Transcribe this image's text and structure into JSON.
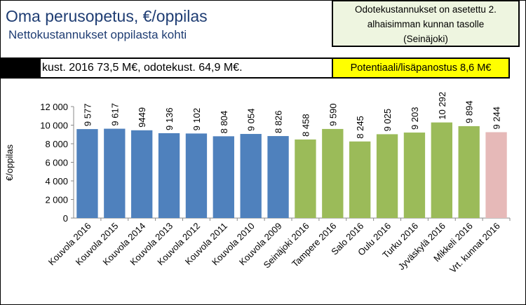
{
  "header": {
    "title": "Oma perusopetus, €/oppilas",
    "subtitle": "Nettokustannukset oppilasta kohti"
  },
  "note": {
    "lines": [
      "Odotekustannukset on asetettu 2.",
      "alhaisimman kunnan tasolle",
      "(Seinäjoki)"
    ]
  },
  "info_bar": {
    "text": "kust. 2016 73,5 M€, odotekust. 64,9 M€."
  },
  "potential_box": {
    "text": "Potentiaali/lisäpanostus  8,6 M€"
  },
  "colors": {
    "blue": "#4f81bd",
    "green": "#9bbb59",
    "pink": "#e6b9b8",
    "title_blue": "#1f3d73",
    "note_bg": "#eef5e0",
    "highlight_yellow": "#ffff00"
  },
  "chart_data": {
    "type": "bar",
    "ylabel": "€/oppilas",
    "ylim": [
      0,
      12000
    ],
    "yticks": [
      0,
      2000,
      4000,
      6000,
      8000,
      10000,
      12000
    ],
    "ytick_labels": [
      "0",
      "2 000",
      "4 000",
      "6 000",
      "8 000",
      "10 000",
      "12 000"
    ],
    "grid": false,
    "legend": "none",
    "categories": [
      "Kouvola 2016",
      "Kouvola 2015",
      "Kouvola 2014",
      "Kouvola 2013",
      "Kouvola 2012",
      "Kouvola 2011",
      "Kouvola 2010",
      "Kouvola 2009",
      "Seinäjoki 2016",
      "Tampere 2016",
      "Salo 2016",
      "Oulu 2016",
      "Turku 2016",
      "Jyväskylä 2016",
      "Mikkeli 2016",
      "Vrt. kunnat 2016"
    ],
    "values": [
      9577,
      9617,
      9449,
      9136,
      9102,
      8804,
      9054,
      8826,
      8458,
      9590,
      8245,
      9025,
      9203,
      10292,
      9894,
      9244
    ],
    "value_labels": [
      "9 577",
      "9 617",
      "9449",
      "9 136",
      "9 102",
      "8 804",
      "9 054",
      "8 826",
      "8 458",
      "9 590",
      "8 245",
      "9 025",
      "9 203",
      "10 292",
      "9 894",
      "9 244"
    ],
    "bar_colors": [
      "blue",
      "blue",
      "blue",
      "blue",
      "blue",
      "blue",
      "blue",
      "blue",
      "green",
      "green",
      "green",
      "green",
      "green",
      "green",
      "green",
      "pink"
    ]
  }
}
